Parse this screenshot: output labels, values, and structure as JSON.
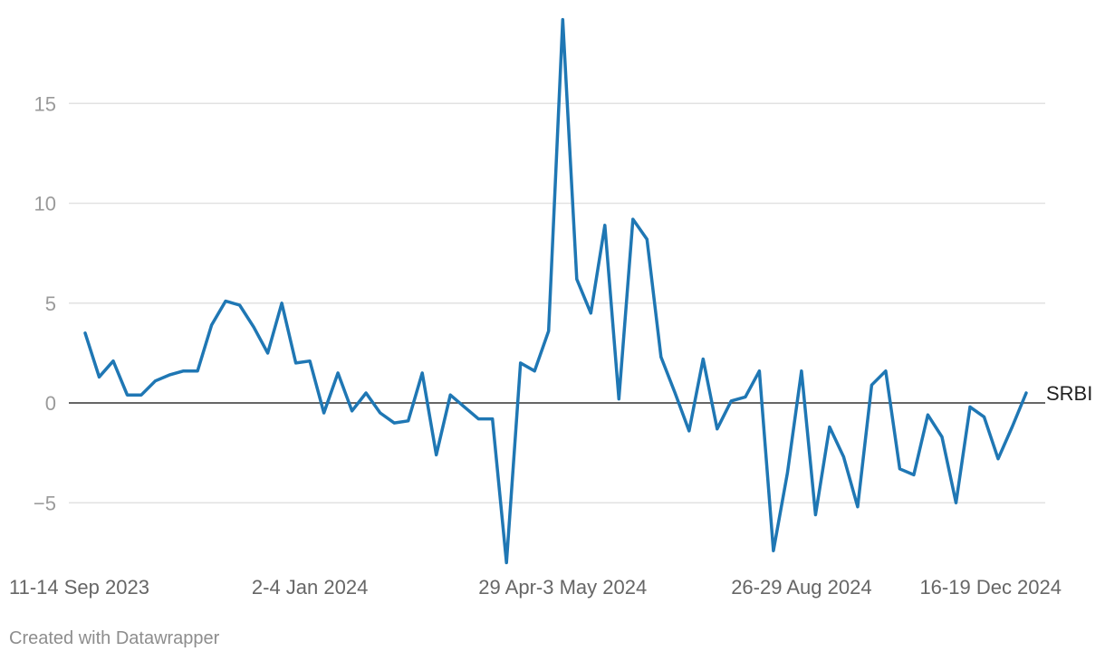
{
  "chart_data": {
    "type": "line",
    "title": "",
    "xlabel": "",
    "ylabel": "",
    "ylim": [
      -8,
      19
    ],
    "yticks": [
      -5,
      0,
      5,
      10,
      15
    ],
    "ytick_labels": [
      "−5",
      "0",
      "5",
      "10",
      "15"
    ],
    "xtick_labels": [
      "11-14 Sep 2023",
      "2-4 Jan 2024",
      "29 Apr-3 May 2024",
      "26-29 Aug 2024",
      "16-19 Dec 2024"
    ],
    "xtick_index": [
      0,
      16,
      34,
      51,
      68
    ],
    "grid": true,
    "series": [
      {
        "name": "SRBI",
        "color": "#1f77b4",
        "values": [
          3.5,
          1.3,
          2.1,
          0.4,
          0.4,
          1.1,
          1.4,
          1.6,
          1.6,
          3.9,
          5.1,
          4.9,
          3.8,
          2.5,
          5.0,
          2.0,
          2.1,
          -0.5,
          1.5,
          -0.4,
          0.5,
          -0.5,
          -1.0,
          -0.9,
          1.5,
          -2.6,
          0.4,
          -0.2,
          -0.8,
          -0.8,
          -8.0,
          2.0,
          1.6,
          3.6,
          19.2,
          6.2,
          4.5,
          8.9,
          0.2,
          9.2,
          8.2,
          2.3,
          0.5,
          -1.4,
          2.2,
          -1.3,
          0.1,
          0.3,
          1.6,
          -7.4,
          -3.5,
          1.6,
          -5.6,
          -1.2,
          -2.7,
          -5.2,
          0.9,
          1.6,
          -3.3,
          -3.6,
          -0.6,
          -1.7,
          -5.0,
          -0.2,
          -0.7,
          -2.8,
          -1.2,
          0.5
        ]
      }
    ]
  },
  "footer": {
    "credit": "Created with Datawrapper"
  }
}
